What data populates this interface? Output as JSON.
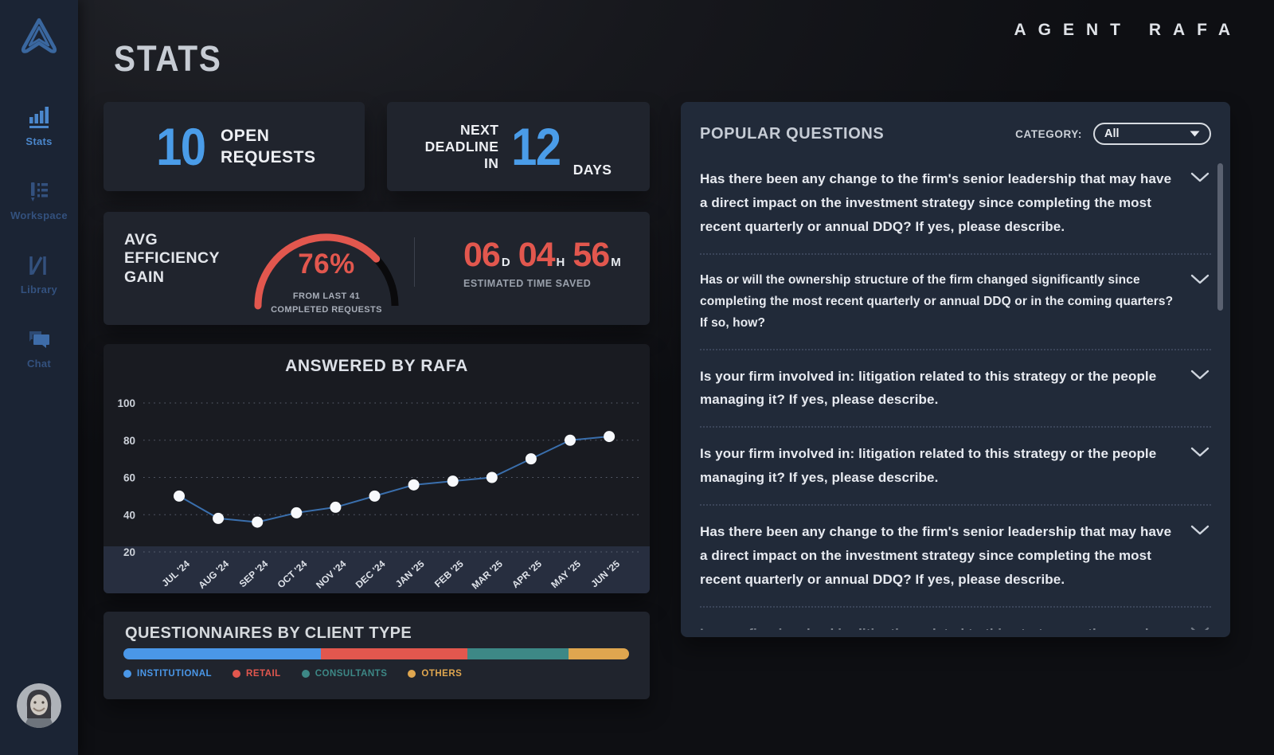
{
  "header": {
    "page_title": "STATS",
    "app_title": "AGENT RAFA"
  },
  "sidebar": {
    "items": [
      {
        "label": "Stats",
        "icon": "bar-chart-icon",
        "active": true
      },
      {
        "label": "Workspace",
        "icon": "pencil-list-icon",
        "active": false
      },
      {
        "label": "Library",
        "icon": "books-icon",
        "active": false
      },
      {
        "label": "Chat",
        "icon": "chat-bubbles-icon",
        "active": false
      }
    ]
  },
  "stat_cards": {
    "open_requests": {
      "value": "10",
      "label_lines": [
        "OPEN",
        "REQUESTS"
      ]
    },
    "next_deadline": {
      "label_lines": [
        "NEXT",
        "DEADLINE",
        "IN"
      ],
      "value": "12",
      "unit": "DAYS"
    }
  },
  "efficiency": {
    "title_lines": [
      "AVG",
      "EFFICIENCY",
      "GAIN"
    ],
    "gauge_percent": 76,
    "gauge_value_label": "76%",
    "gauge_caption_lines": [
      "FROM LAST 41",
      "COMPLETED REQUESTS"
    ],
    "time_saved": {
      "segments": [
        {
          "value": "06",
          "unit": "D"
        },
        {
          "value": "04",
          "unit": "H"
        },
        {
          "value": "56",
          "unit": "M"
        }
      ],
      "caption": "ESTIMATED TIME SAVED"
    }
  },
  "chart_data": [
    {
      "type": "line",
      "title": "ANSWERED BY RAFA",
      "x": [
        "JUL '24",
        "AUG '24",
        "SEP '24",
        "OCT '24",
        "NOV '24",
        "DEC '24",
        "JAN '25",
        "FEB '25",
        "MAR '25",
        "APR '25",
        "MAY '25",
        "JUN '25"
      ],
      "values": [
        50,
        38,
        36,
        41,
        44,
        50,
        56,
        58,
        60,
        70,
        80,
        82
      ],
      "ylim": [
        20,
        100
      ],
      "yticks": [
        100,
        80,
        60,
        40,
        20
      ],
      "grid": "horizontal-dotted",
      "legend": "none",
      "line_color": "#3a6fad",
      "point_color": "#f7f9fc"
    },
    {
      "type": "bar",
      "stacked": true,
      "title": "QUESTIONNAIRES BY CLIENT TYPE",
      "segments": [
        {
          "label": "INSTITUTIONAL",
          "percent": 39,
          "color": "#4a97e8"
        },
        {
          "label": "RETAIL",
          "percent": 29,
          "color": "#e2574e"
        },
        {
          "label": "CONSULTANTS",
          "percent": 20,
          "color": "#3d8886"
        },
        {
          "label": "OTHERS",
          "percent": 12,
          "color": "#dfa64f"
        }
      ]
    }
  ],
  "questions_panel": {
    "title": "POPULAR QUESTIONS",
    "category_label": "CATEGORY:",
    "category_value": "All",
    "questions": [
      {
        "text": "Has there been any change to the firm's senior leadership that may have a direct impact on the investment strategy since completing the most recent quarterly or annual DDQ? If yes, please describe.",
        "font_size": 17,
        "clipped": false
      },
      {
        "text": "Has or will the ownership structure of the firm changed significantly since completing the most recent quarterly or annual DDQ or in the coming quarters? If so, how?",
        "font_size": 15.5,
        "clipped": false
      },
      {
        "text": "Is your firm involved in: litigation related to this strategy or the people managing it? If yes, please describe.",
        "font_size": 17,
        "clipped": false
      },
      {
        "text": "Is your firm involved in: litigation related to this strategy or the people managing it? If yes, please describe.",
        "font_size": 17,
        "clipped": false
      },
      {
        "text": "Has there been any change to the firm's senior leadership that may have a direct impact on the investment strategy since completing the most recent quarterly or annual DDQ? If yes, please describe.",
        "font_size": 17,
        "clipped": false
      },
      {
        "text": "Is your firm involved in: litigation related to this strategy or the people managing it? If yes, please describe.",
        "font_size": 17,
        "clipped": true
      }
    ]
  },
  "colors": {
    "accent_blue": "#4a9ce8",
    "accent_red": "#e2574e",
    "teal": "#3d8886",
    "gold": "#dfa64f",
    "sidebar_blue": "#3e6ca8",
    "gauge_track": "#0a0a0c",
    "panel_bg": "#212a39"
  }
}
